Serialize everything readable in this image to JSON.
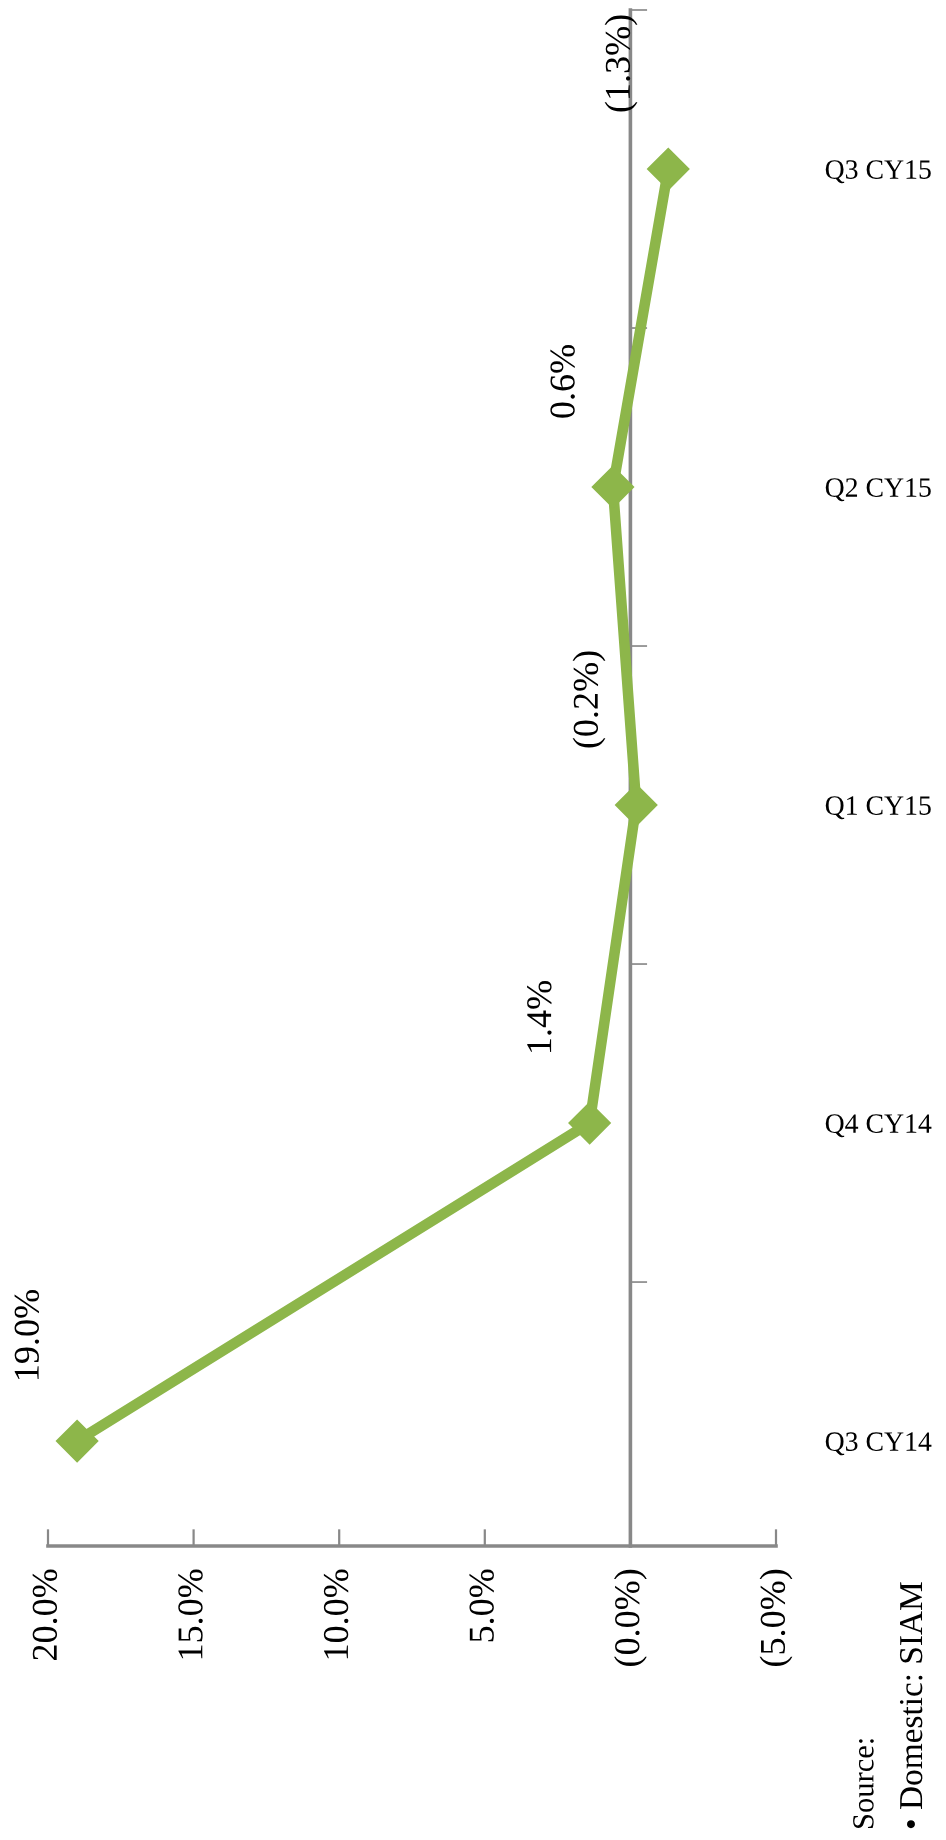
{
  "chart_data": {
    "type": "line",
    "orientation": "horizontal",
    "categories": [
      "Q3 CY15",
      "Q2 CY15",
      "Q1 CY15",
      "Q4 CY14",
      "Q3 CY14"
    ],
    "series": [
      {
        "color": "#8db64a",
        "values": [
          -1.3,
          0.6,
          -0.2,
          1.4,
          19.0
        ],
        "value_labels": [
          "(1.3%)",
          "0.6%",
          "(0.2%)",
          "1.4%",
          "19.0%"
        ]
      }
    ],
    "xlim": [
      20,
      -5
    ],
    "xticks": [
      {
        "value": 20,
        "label": "20.0%"
      },
      {
        "value": 15,
        "label": "15.0%"
      },
      {
        "value": 10,
        "label": "10.0%"
      },
      {
        "value": 5,
        "label": "5.0%"
      },
      {
        "value": 0,
        "label": "(0.0%)"
      },
      {
        "value": -5,
        "label": "(5.0%)"
      }
    ],
    "marker": "diamond",
    "line_style": "solid",
    "annotations": [
      "Source:",
      "• Domestic: SIAM"
    ]
  }
}
